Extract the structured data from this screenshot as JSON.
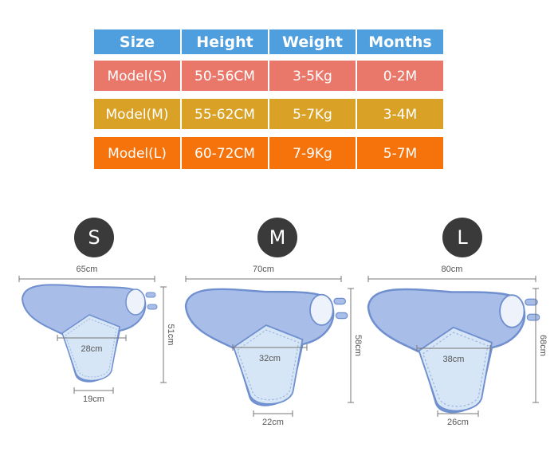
{
  "table": {
    "header": [
      "Size",
      "Height",
      "Weight",
      "Months"
    ],
    "rows": [
      [
        "Model(S)",
        "50-56CM",
        "3-5Kg",
        "0-2M"
      ],
      [
        "Model(M)",
        "55-62CM",
        "5-7Kg",
        "3-4M"
      ],
      [
        "Model(L)",
        "60-72CM",
        "7-9Kg",
        "5-7M"
      ]
    ]
  },
  "diagrams": [
    {
      "size": "S",
      "width": "65cm",
      "length": "51cm",
      "chest": "28cm",
      "bottom": "19cm"
    },
    {
      "size": "M",
      "width": "70cm",
      "length": "58cm",
      "chest": "32cm",
      "bottom": "22cm"
    },
    {
      "size": "L",
      "width": "80cm",
      "length": "68cm",
      "chest": "38cm",
      "bottom": "26cm"
    }
  ]
}
